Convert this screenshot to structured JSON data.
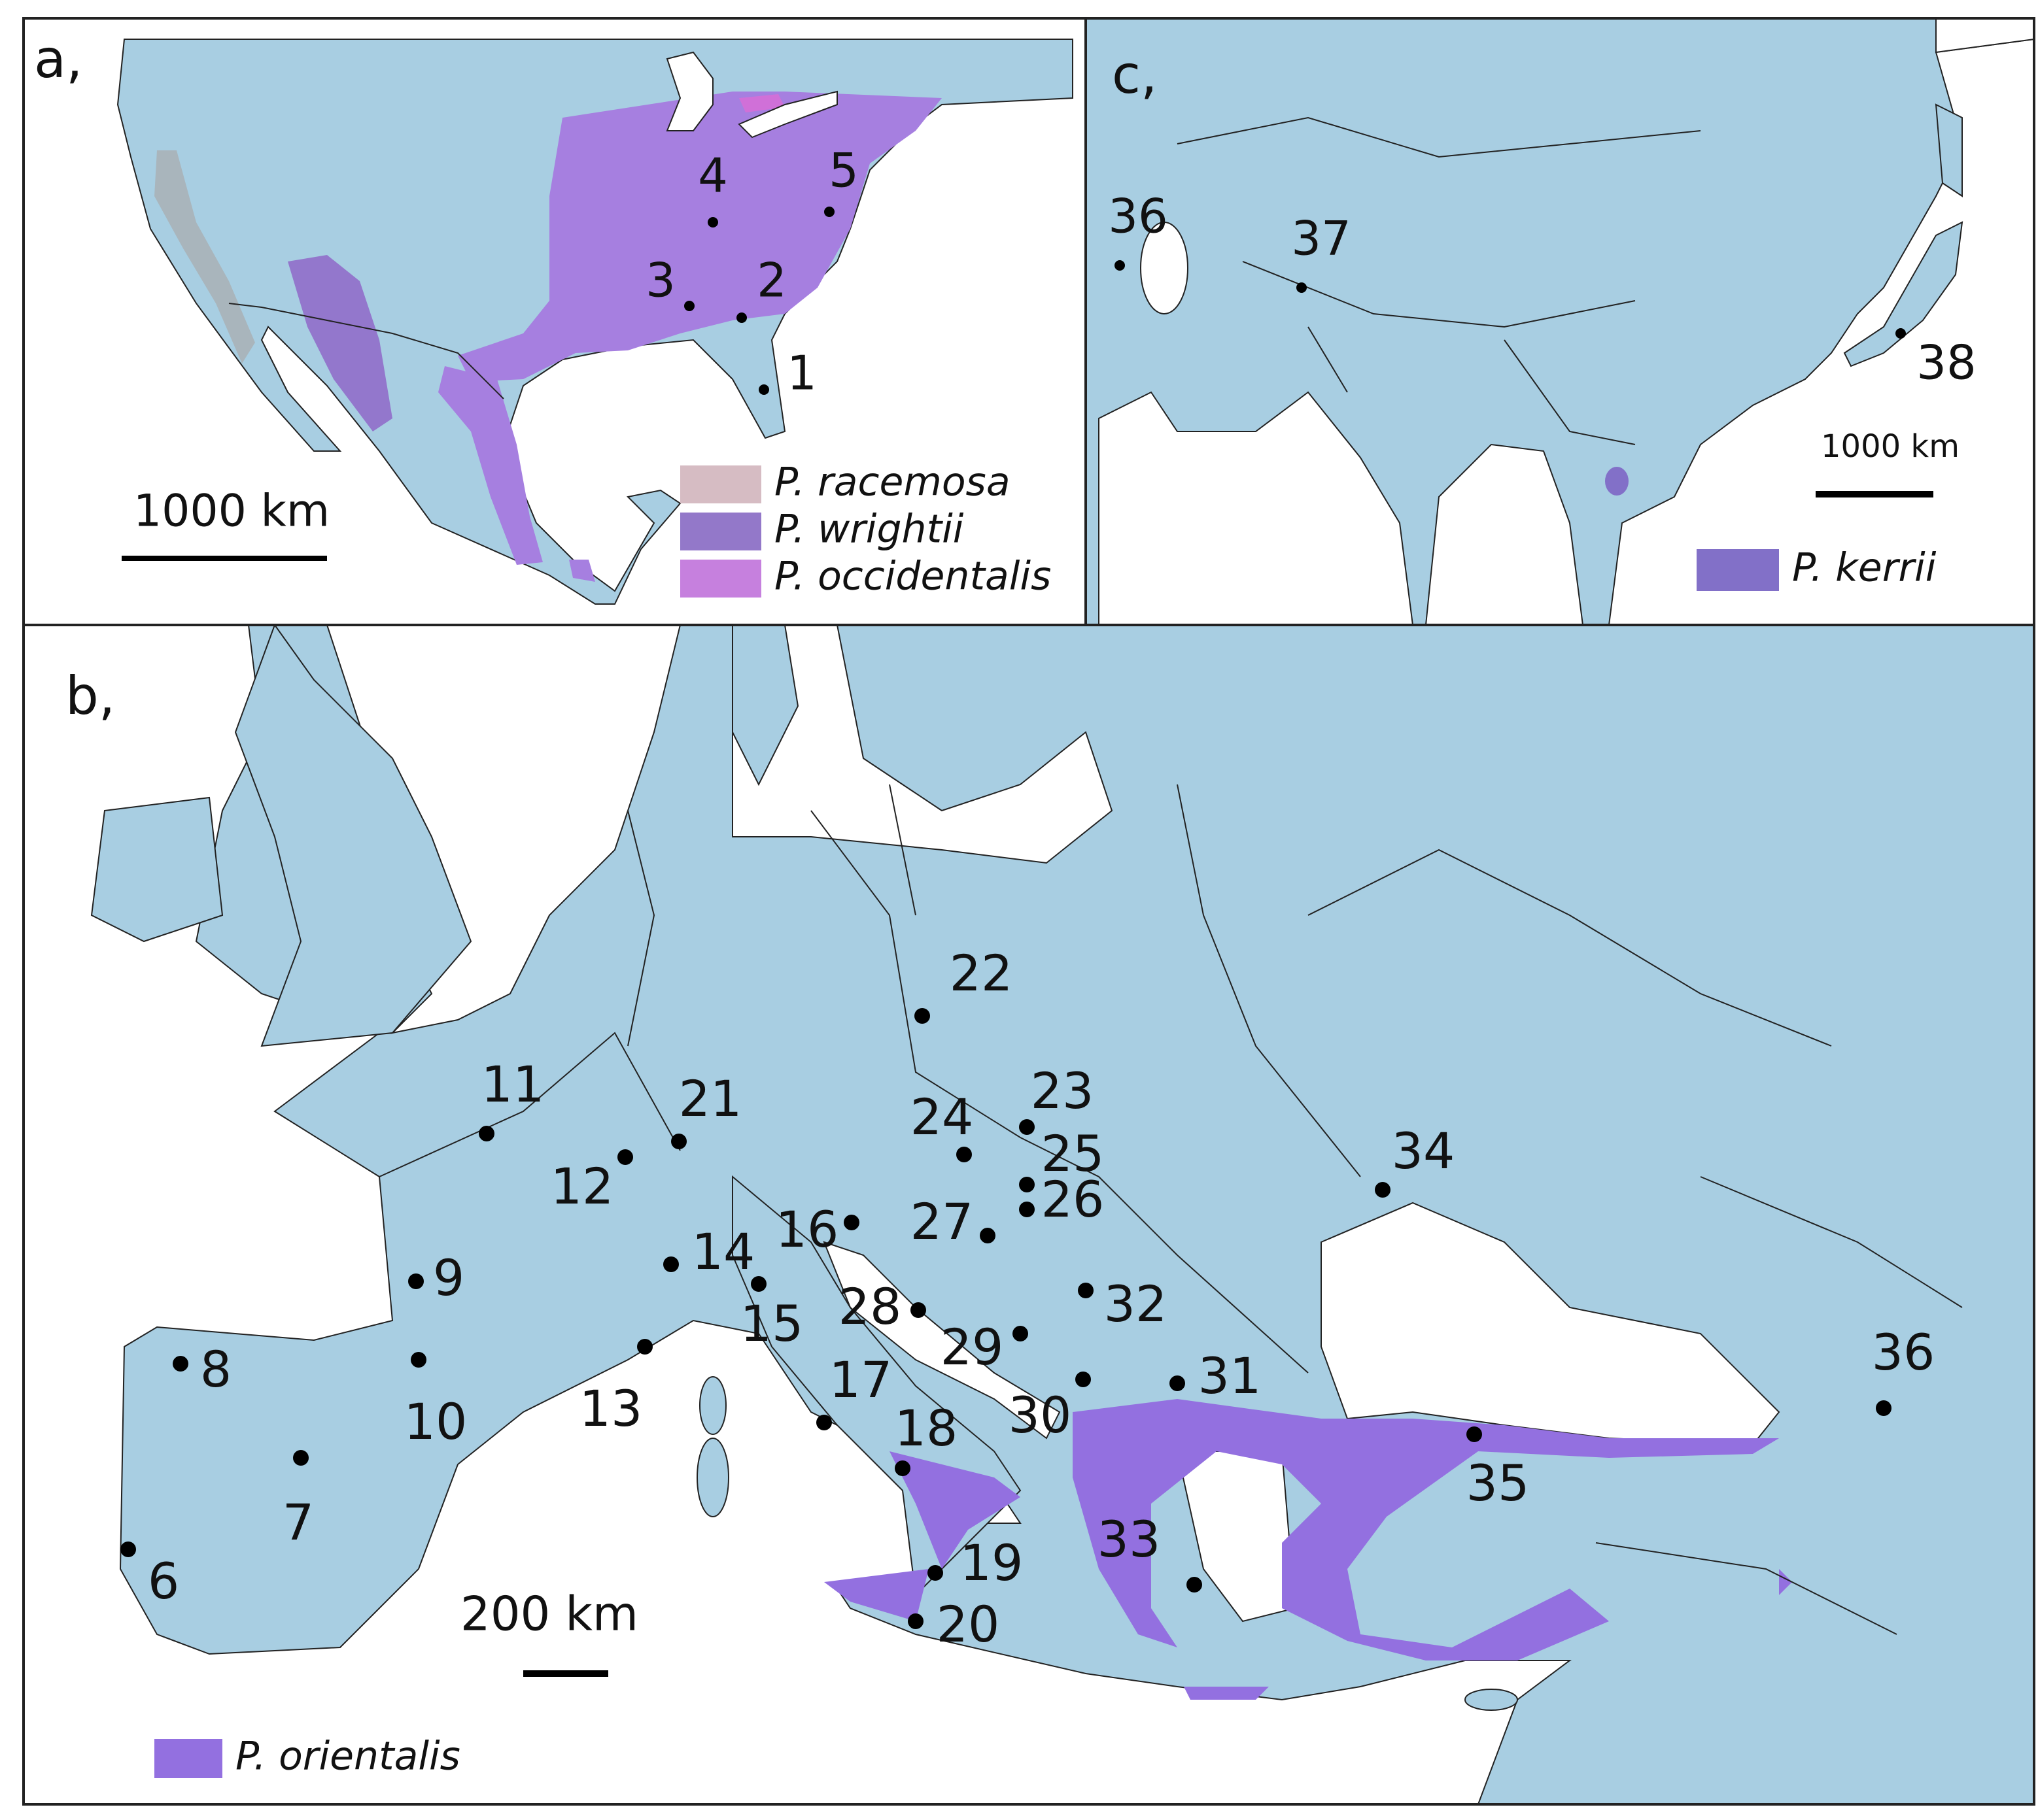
{
  "panels": [
    {
      "label": "a,",
      "scale_bar": "1000 km",
      "legend": [
        {
          "name": "P. racemosa",
          "color": "#d6bcc3"
        },
        {
          "name": "P. wrightii",
          "color": "#9378c9"
        },
        {
          "name": "P. occidentalis",
          "color": "#c680de"
        }
      ],
      "sites": [
        "1",
        "2",
        "3",
        "4",
        "5"
      ]
    },
    {
      "label": "b,",
      "scale_bar": "200 km",
      "legend": [
        {
          "name": "P. orientalis",
          "color": "#9370e0"
        }
      ],
      "sites": [
        "6",
        "7",
        "8",
        "9",
        "10",
        "11",
        "12",
        "13",
        "14",
        "15",
        "16",
        "17",
        "18",
        "19",
        "20",
        "21",
        "22",
        "23",
        "24",
        "25",
        "26",
        "27",
        "28",
        "29",
        "30",
        "31",
        "32",
        "33",
        "34",
        "35",
        "36"
      ]
    },
    {
      "label": "c,",
      "scale_bar": "1000 km",
      "legend": [
        {
          "name": "P. kerrii",
          "color": "#8270c8"
        }
      ],
      "sites": [
        "36",
        "37",
        "38"
      ]
    }
  ]
}
